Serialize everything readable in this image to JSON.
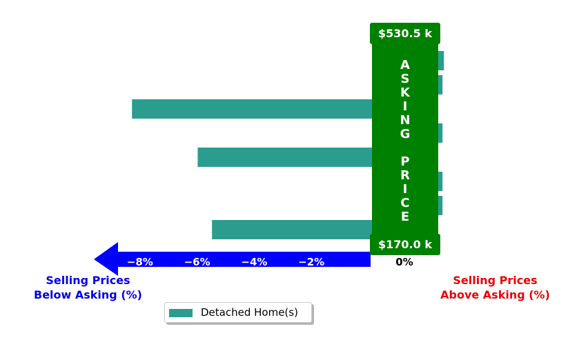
{
  "chart_data": {
    "type": "bar",
    "orientation": "horizontal",
    "series": [
      {
        "name": "Detached Home(s)",
        "color": "#2a9d8f",
        "values": [
          0.2,
          0.15,
          -8.4,
          0.15,
          -6.1,
          0.15,
          0.15,
          -5.6
        ]
      }
    ],
    "xlim": [
      -8.4,
      2.1
    ],
    "x_ticks": [
      {
        "value": -8,
        "label": "−8%"
      },
      {
        "value": -6,
        "label": "−6%"
      },
      {
        "value": -4,
        "label": "−4%"
      },
      {
        "value": -2,
        "label": "−2%"
      },
      {
        "value": 0,
        "label": "0%"
      }
    ],
    "asking_price_band": {
      "text": "ASKING PRICE",
      "top_label": "$530.5 k",
      "bottom_label": "$170.0 k",
      "color": "#008000"
    },
    "below_label": "Selling Prices\nBelow Asking (%)",
    "above_label": "Selling Prices\nAbove Asking (%)",
    "below_color": "#0000ee",
    "above_color": "#ee0000",
    "arrow_color": "#0000ff",
    "legend_placement": "bottom-center",
    "grid": false
  }
}
